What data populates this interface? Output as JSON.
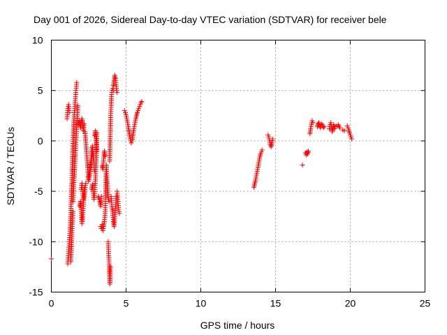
{
  "chart_data": {
    "type": "scatter",
    "title": "Day 001 of 2026, Sidereal Day-to-day VTEC variation (SDTVAR) for receiver bele",
    "xlabel": "GPS time / hours",
    "ylabel": "SDTVAR / TECUs",
    "xlim": [
      0,
      25
    ],
    "ylim": [
      -15,
      10
    ],
    "xticks": [
      0,
      5,
      10,
      15,
      20,
      25
    ],
    "yticks": [
      -15,
      -10,
      -5,
      0,
      5,
      10
    ],
    "grid": true,
    "marker": "+",
    "color": "#ff0000",
    "series": [
      {
        "name": "SDTVAR",
        "segments": [
          [
            [
              0.0,
              -11.7
            ]
          ],
          [
            [
              1.1,
              -12.2
            ],
            [
              1.15,
              -11.2
            ],
            [
              1.2,
              -10.0
            ],
            [
              1.25,
              -9.0
            ],
            [
              1.3,
              -7.5
            ],
            [
              1.33,
              -5.5
            ],
            [
              1.37,
              -4.2
            ],
            [
              1.4,
              -2.5
            ],
            [
              1.43,
              -1.0
            ],
            [
              1.46,
              0.5
            ],
            [
              1.5,
              1.8
            ],
            [
              1.55,
              3.0
            ],
            [
              1.6,
              4.0
            ],
            [
              1.65,
              5.0
            ],
            [
              1.7,
              5.8
            ]
          ],
          [
            [
              1.05,
              2.2
            ],
            [
              1.1,
              3.2
            ],
            [
              1.15,
              3.6
            ],
            [
              1.2,
              2.8
            ]
          ],
          [
            [
              1.45,
              -6.0
            ],
            [
              1.5,
              -4.5
            ],
            [
              1.55,
              -3.0
            ],
            [
              1.6,
              -1.5
            ],
            [
              1.65,
              0.0
            ],
            [
              1.7,
              1.5
            ],
            [
              1.75,
              2.8
            ],
            [
              1.78,
              3.5
            ]
          ],
          [
            [
              1.3,
              -12.0
            ],
            [
              1.35,
              -10.5
            ],
            [
              1.4,
              -8.5
            ],
            [
              1.45,
              -7.0
            ]
          ],
          [
            [
              1.8,
              1.6
            ],
            [
              1.85,
              2.0
            ],
            [
              1.9,
              1.8
            ],
            [
              1.95,
              1.3
            ],
            [
              2.0,
              1.9
            ],
            [
              2.05,
              2.2
            ],
            [
              2.1,
              1.5
            ],
            [
              2.15,
              1.0
            ],
            [
              2.2,
              1.7
            ]
          ],
          [
            [
              1.9,
              -6.5
            ],
            [
              1.95,
              -6.0
            ],
            [
              2.0,
              -7.0
            ],
            [
              2.05,
              -8.2
            ],
            [
              2.1,
              -7.5
            ],
            [
              2.15,
              -6.3
            ],
            [
              2.2,
              -5.5
            ],
            [
              2.25,
              -4.8
            ],
            [
              2.3,
              -4.2
            ]
          ],
          [
            [
              2.0,
              -4.8
            ],
            [
              2.05,
              -4.2
            ],
            [
              2.1,
              -5.2
            ],
            [
              2.15,
              -5.8
            ],
            [
              2.2,
              -4.6
            ]
          ],
          [
            [
              2.25,
              0.9
            ],
            [
              2.3,
              0.0
            ],
            [
              2.35,
              -1.0
            ],
            [
              2.4,
              -2.0
            ],
            [
              2.45,
              -3.0
            ],
            [
              2.5,
              -3.5
            ],
            [
              2.55,
              -3.2
            ],
            [
              2.6,
              -2.5
            ],
            [
              2.65,
              -1.8
            ],
            [
              2.7,
              -1.0
            ],
            [
              2.75,
              -0.5
            ],
            [
              2.8,
              -1.2
            ],
            [
              2.85,
              -2.2
            ],
            [
              2.9,
              -3.0
            ]
          ],
          [
            [
              2.45,
              -3.5
            ],
            [
              2.5,
              -4.0
            ],
            [
              2.55,
              -3.6
            ],
            [
              2.6,
              -3.0
            ],
            [
              2.65,
              -2.4
            ],
            [
              2.7,
              -1.6
            ],
            [
              2.75,
              -1.2
            ],
            [
              2.8,
              -1.8
            ]
          ],
          [
            [
              2.7,
              -4.8
            ],
            [
              2.75,
              -4.3
            ],
            [
              2.8,
              -5.0
            ],
            [
              2.85,
              -5.8
            ],
            [
              2.9,
              -5.2
            ],
            [
              2.95,
              -3.8
            ],
            [
              3.0,
              -2.0
            ],
            [
              3.02,
              -0.5
            ],
            [
              3.05,
              0.8
            ]
          ],
          [
            [
              2.9,
              0.5
            ],
            [
              2.95,
              1.0
            ],
            [
              3.0,
              0.0
            ],
            [
              3.05,
              -1.0
            ]
          ],
          [
            [
              3.15,
              -5.5
            ],
            [
              3.2,
              -5.8
            ],
            [
              3.25,
              -6.0
            ],
            [
              3.3,
              -6.5
            ],
            [
              3.35,
              -5.5
            ]
          ],
          [
            [
              3.3,
              -8.5
            ],
            [
              3.35,
              -8.7
            ],
            [
              3.4,
              -8.3
            ],
            [
              3.45,
              -8.9
            ],
            [
              3.5,
              -8.5
            ],
            [
              3.55,
              -8.0
            ],
            [
              3.6,
              -7.2
            ],
            [
              3.62,
              -6.0
            ],
            [
              3.64,
              -4.5
            ],
            [
              3.66,
              -3.2
            ],
            [
              3.68,
              -2.4
            ],
            [
              3.7,
              -3.0
            ],
            [
              3.75,
              -4.2
            ],
            [
              3.8,
              -5.5
            ],
            [
              3.85,
              -6.0
            ]
          ],
          [
            [
              3.4,
              -2.5
            ],
            [
              3.45,
              -2.8
            ],
            [
              3.5,
              -1.8
            ],
            [
              3.55,
              -1.0
            ],
            [
              3.6,
              -1.5
            ]
          ],
          [
            [
              3.8,
              -10.0
            ],
            [
              3.83,
              -11.0
            ],
            [
              3.86,
              -12.0
            ],
            [
              3.88,
              -12.8
            ],
            [
              3.9,
              -13.5
            ],
            [
              3.92,
              -14.2
            ],
            [
              3.94,
              -13.5
            ],
            [
              3.96,
              -12.5
            ]
          ],
          [
            [
              3.9,
              -2.0
            ],
            [
              3.93,
              -0.5
            ],
            [
              3.95,
              1.0
            ],
            [
              3.97,
              2.5
            ],
            [
              4.0,
              3.5
            ],
            [
              4.02,
              4.2
            ],
            [
              4.05,
              5.0
            ],
            [
              4.1,
              5.2
            ],
            [
              4.15,
              5.0
            ]
          ],
          [
            [
              4.0,
              -5.5
            ],
            [
              4.05,
              -6.5
            ],
            [
              4.1,
              -7.0
            ],
            [
              4.15,
              -8.0
            ],
            [
              4.2,
              -8.5
            ],
            [
              4.25,
              -7.5
            ],
            [
              4.3,
              -6.5
            ],
            [
              4.35,
              -5.5
            ]
          ],
          [
            [
              4.15,
              5.5
            ],
            [
              4.2,
              6.0
            ],
            [
              4.25,
              6.5
            ],
            [
              4.3,
              6.2
            ],
            [
              4.35,
              5.2
            ],
            [
              4.4,
              4.8
            ]
          ],
          [
            [
              4.4,
              -5.0
            ],
            [
              4.45,
              -5.8
            ],
            [
              4.5,
              -6.8
            ],
            [
              4.55,
              -7.2
            ]
          ],
          [
            [
              4.9,
              3.0
            ],
            [
              5.0,
              2.6
            ],
            [
              5.05,
              2.2
            ],
            [
              5.1,
              1.8
            ],
            [
              5.15,
              1.4
            ],
            [
              5.2,
              0.9
            ],
            [
              5.25,
              0.4
            ],
            [
              5.3,
              0.0
            ],
            [
              5.35,
              -0.2
            ],
            [
              5.4,
              0.0
            ],
            [
              5.45,
              0.5
            ],
            [
              5.5,
              1.0
            ],
            [
              5.55,
              1.4
            ],
            [
              5.6,
              1.8
            ],
            [
              5.65,
              2.2
            ],
            [
              5.7,
              2.5
            ],
            [
              5.75,
              2.8
            ],
            [
              5.8,
              3.0
            ],
            [
              5.85,
              3.2
            ],
            [
              5.9,
              3.4
            ],
            [
              5.95,
              3.6
            ],
            [
              6.0,
              3.8
            ],
            [
              6.05,
              3.9
            ]
          ],
          [
            [
              13.55,
              -4.6
            ],
            [
              13.6,
              -4.3
            ],
            [
              13.65,
              -4.0
            ],
            [
              13.7,
              -3.6
            ],
            [
              13.75,
              -3.2
            ],
            [
              13.8,
              -2.8
            ],
            [
              13.85,
              -2.4
            ],
            [
              13.9,
              -2.0
            ],
            [
              13.95,
              -1.6
            ],
            [
              14.0,
              -1.3
            ],
            [
              14.05,
              -1.1
            ],
            [
              14.1,
              -0.9
            ]
          ],
          [
            [
              14.5,
              0.6
            ],
            [
              14.55,
              0.4
            ],
            [
              14.6,
              0.0
            ],
            [
              14.65,
              -0.4
            ],
            [
              14.7,
              -0.6
            ],
            [
              14.75,
              -0.3
            ],
            [
              14.8,
              0.2
            ]
          ],
          [
            [
              16.8,
              -2.4
            ]
          ],
          [
            [
              17.0,
              -1.2
            ],
            [
              17.05,
              -1.4
            ],
            [
              17.1,
              -1.1
            ],
            [
              17.15,
              -1.3
            ],
            [
              17.2,
              -1.0
            ]
          ],
          [
            [
              17.3,
              0.7
            ],
            [
              17.35,
              1.2
            ],
            [
              17.4,
              1.6
            ],
            [
              17.45,
              2.0
            ],
            [
              17.5,
              1.8
            ]
          ],
          [
            [
              17.8,
              1.4
            ],
            [
              17.85,
              1.7
            ],
            [
              17.9,
              1.8
            ],
            [
              17.95,
              1.5
            ],
            [
              18.0,
              1.3
            ],
            [
              18.05,
              1.6
            ],
            [
              18.1,
              1.7
            ],
            [
              18.15,
              1.5
            ],
            [
              18.2,
              1.3
            ],
            [
              18.25,
              1.4
            ]
          ],
          [
            [
              18.6,
              1.2
            ],
            [
              18.65,
              1.6
            ],
            [
              18.7,
              1.8
            ],
            [
              18.75,
              1.4
            ],
            [
              18.8,
              0.9
            ],
            [
              18.85,
              1.3
            ],
            [
              18.9,
              1.6
            ],
            [
              18.95,
              1.2
            ],
            [
              19.0,
              1.4
            ],
            [
              19.1,
              1.5
            ],
            [
              19.2,
              1.6
            ],
            [
              19.3,
              1.3
            ]
          ],
          [
            [
              19.5,
              1.1
            ],
            [
              19.6,
              1.0
            ]
          ],
          [
            [
              19.8,
              1.5
            ],
            [
              19.85,
              1.3
            ],
            [
              19.9,
              1.1
            ],
            [
              19.95,
              0.8
            ],
            [
              20.0,
              0.6
            ],
            [
              20.05,
              0.4
            ],
            [
              20.1,
              0.2
            ]
          ]
        ]
      }
    ]
  }
}
